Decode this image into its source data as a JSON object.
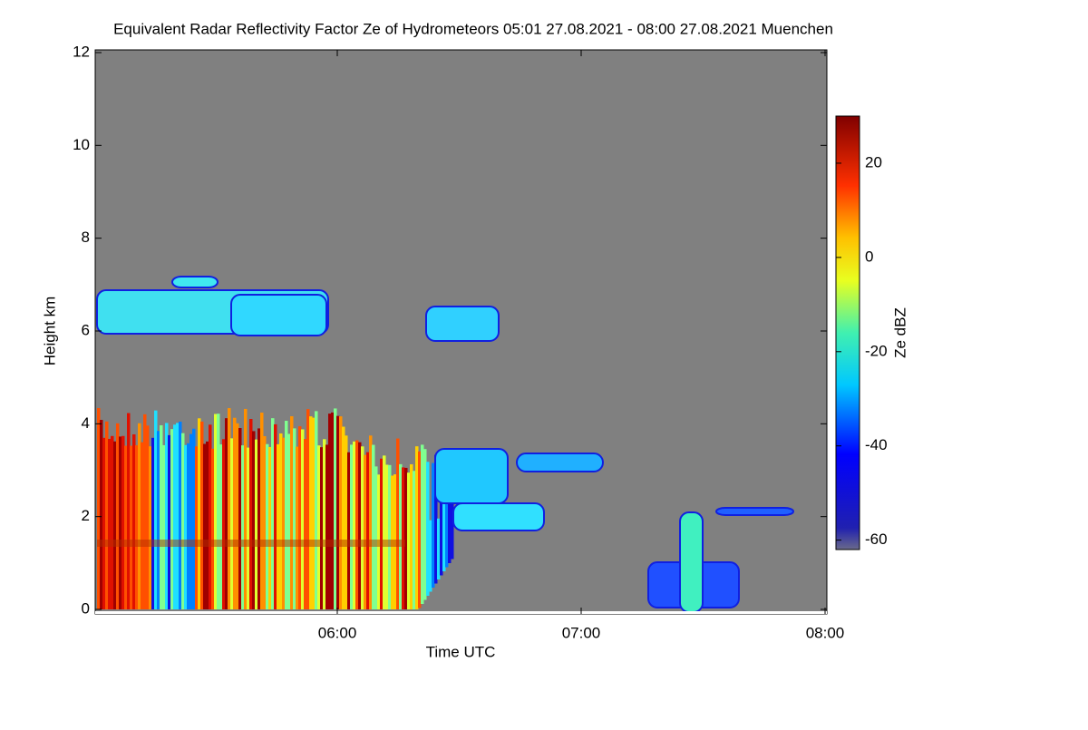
{
  "chart_data": {
    "type": "heatmap",
    "title": "Equivalent Radar Reflectivity Factor Ze of Hydrometeors   05:01 27.08.2021 - 08:00 27.08.2021 Muenchen",
    "x_label": "Time UTC",
    "y_label": "Height km",
    "xlim": [
      "05:01",
      "08:00"
    ],
    "xticks": [
      "06:00",
      "07:00",
      "08:00"
    ],
    "ylim": [
      0,
      12
    ],
    "yticks": [
      0,
      2,
      4,
      6,
      8,
      10,
      12
    ],
    "colorbar": {
      "label": "Ze dBZ",
      "lim": [
        -62,
        30
      ],
      "ticks": [
        20,
        0,
        -20,
        -40,
        -60
      ]
    },
    "background_color": "#808080"
  }
}
